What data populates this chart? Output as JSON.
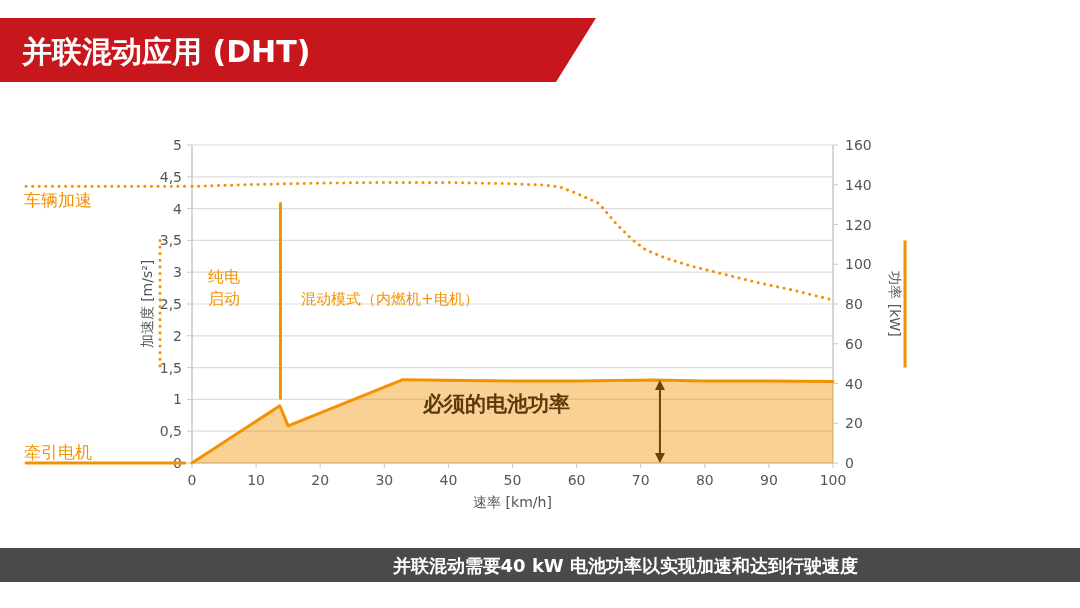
{
  "chart_data": {
    "type": "line",
    "title": "并联混动应用 (DHT)",
    "xlabel": "速率 [km/h]",
    "ylabel": "加速度 [m/s²]",
    "y2label": "功率 [kW]",
    "xlim": [
      0,
      100
    ],
    "xticks": [
      0,
      10,
      20,
      30,
      40,
      50,
      60,
      70,
      80,
      90,
      100
    ],
    "ylim": [
      0,
      5
    ],
    "yticks": [
      0,
      {
        "value": 0.5,
        "label": "0,5"
      },
      1,
      {
        "value": 1.5,
        "label": "1,5"
      },
      2,
      {
        "value": 2.5,
        "label": "2,5"
      },
      3,
      {
        "value": 3.5,
        "label": "3,5"
      },
      4,
      {
        "value": 4.5,
        "label": "4,5"
      },
      5
    ],
    "y2lim": [
      0,
      160
    ],
    "y2ticks": [
      0,
      20,
      40,
      60,
      80,
      100,
      120,
      140,
      160
    ],
    "grid": "y",
    "legend": "left",
    "series": [
      {
        "name": "车辆加速",
        "line_style": "dotted",
        "color": "#f39200",
        "x": [
          0,
          10,
          20,
          30,
          40,
          50,
          55,
          57.4,
          60,
          63.5,
          66.1,
          68.7,
          70.8,
          73.9,
          78.1,
          83.3,
          88.5,
          93.7,
          100
        ],
        "values": [
          4.35,
          4.38,
          4.4,
          4.41,
          4.41,
          4.39,
          4.37,
          4.34,
          4.24,
          4.08,
          3.77,
          3.51,
          3.35,
          3.22,
          3.09,
          2.96,
          2.83,
          2.72,
          2.56
        ]
      },
      {
        "name": "牵引电机",
        "type": "area",
        "axis": "y2",
        "line_style": "solid",
        "color": "#f39200",
        "x": [
          0,
          13.7,
          15.0,
          32.9,
          50,
          60,
          72,
          80,
          90,
          100
        ],
        "values": [
          0,
          28.8,
          18.7,
          41.9,
          41.3,
          41.3,
          41.8,
          41.3,
          41.3,
          41
        ]
      },
      {
        "line_style": "solid",
        "color": "#f39200",
        "x": [
          13.8,
          13.8
        ],
        "values": [
          1.02,
          4.08
        ]
      }
    ],
    "annotations": [
      "纯电",
      "启动",
      "混动模式（内燃机+电机）",
      "必须的电池功率",
      "并联混动需要40 kW 电池功率以实现加速和达到行驶速度"
    ]
  }
}
